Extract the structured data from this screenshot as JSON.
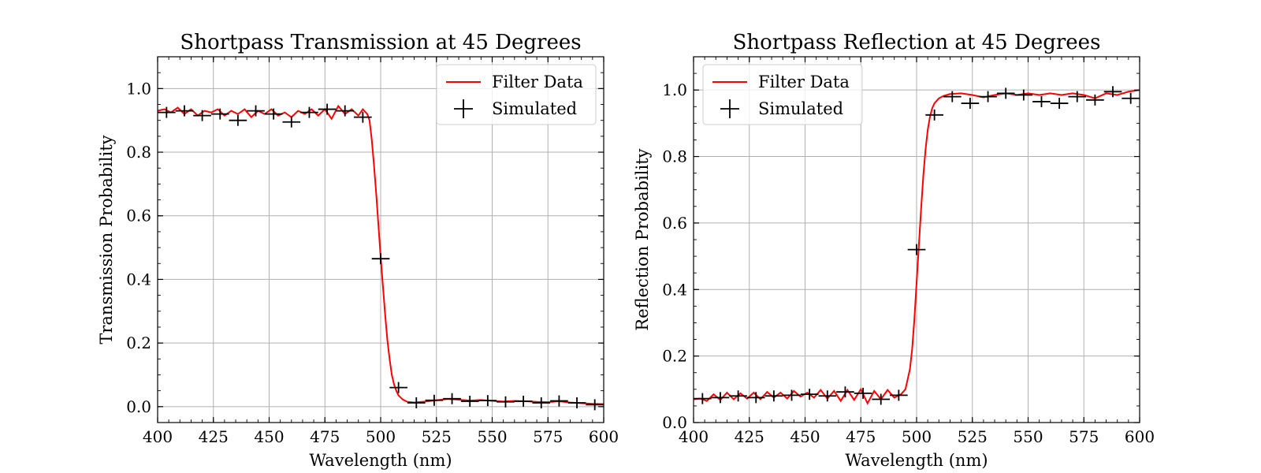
{
  "chart_data": [
    {
      "type": "line",
      "title": "Shortpass Transmission at 45 Degrees",
      "xlabel": "Wavelength (nm)",
      "ylabel": "Transmission Probability",
      "xlim": [
        400,
        600
      ],
      "ylim": [
        -0.05,
        1.1
      ],
      "xticks": [
        400,
        425,
        450,
        475,
        500,
        525,
        550,
        575,
        600
      ],
      "yticks": [
        0.0,
        0.2,
        0.4,
        0.6,
        0.8,
        1.0
      ],
      "ytick_labels": [
        "0.0",
        "0.2",
        "0.4",
        "0.6",
        "0.8",
        "1.0"
      ],
      "grid": true,
      "legend_position": "top-right",
      "series": [
        {
          "name": "Filter Data",
          "style": "line",
          "color": "#ff0000",
          "x": [
            400,
            403,
            406,
            409,
            412,
            415,
            418,
            421,
            424,
            427,
            430,
            433,
            436,
            439,
            442,
            445,
            448,
            451,
            454,
            457,
            460,
            463,
            466,
            469,
            472,
            475,
            478,
            481,
            484,
            487,
            490,
            492,
            494,
            495,
            496,
            497,
            498,
            499,
            500,
            501,
            502,
            503,
            504,
            505,
            506,
            507,
            508,
            510,
            512,
            515,
            520,
            525,
            530,
            535,
            540,
            545,
            550,
            555,
            560,
            565,
            570,
            575,
            580,
            585,
            590,
            595,
            600
          ],
          "y": [
            0.93,
            0.935,
            0.925,
            0.94,
            0.92,
            0.935,
            0.915,
            0.93,
            0.925,
            0.935,
            0.915,
            0.93,
            0.92,
            0.935,
            0.91,
            0.93,
            0.92,
            0.935,
            0.915,
            0.925,
            0.91,
            0.93,
            0.92,
            0.935,
            0.915,
            0.935,
            0.905,
            0.945,
            0.92,
            0.935,
            0.915,
            0.935,
            0.92,
            0.9,
            0.84,
            0.76,
            0.67,
            0.57,
            0.47,
            0.38,
            0.29,
            0.21,
            0.15,
            0.1,
            0.07,
            0.05,
            0.035,
            0.022,
            0.015,
            0.013,
            0.016,
            0.02,
            0.024,
            0.022,
            0.019,
            0.021,
            0.018,
            0.016,
            0.018,
            0.017,
            0.015,
            0.014,
            0.017,
            0.013,
            0.011,
            0.009,
            0.008
          ]
        },
        {
          "name": "Simulated",
          "style": "errorbar",
          "color": "#000000",
          "x": [
            404,
            412,
            420,
            428,
            436,
            444,
            452,
            460,
            468,
            476,
            484,
            492,
            500,
            508,
            516,
            524,
            532,
            540,
            548,
            556,
            564,
            572,
            580,
            588,
            596
          ],
          "y": [
            0.925,
            0.93,
            0.915,
            0.92,
            0.9,
            0.93,
            0.92,
            0.895,
            0.925,
            0.935,
            0.93,
            0.91,
            0.465,
            0.06,
            0.012,
            0.02,
            0.025,
            0.017,
            0.019,
            0.015,
            0.017,
            0.012,
            0.018,
            0.012,
            0.006
          ]
        }
      ]
    },
    {
      "type": "line",
      "title": "Shortpass Reflection at 45 Degrees",
      "xlabel": "Wavelength (nm)",
      "ylabel": "Reflection Probability",
      "xlim": [
        400,
        600
      ],
      "ylim": [
        0.0,
        1.1
      ],
      "xticks": [
        400,
        425,
        450,
        475,
        500,
        525,
        550,
        575,
        600
      ],
      "yticks": [
        0.0,
        0.2,
        0.4,
        0.6,
        0.8,
        1.0
      ],
      "ytick_labels": [
        "0.0",
        "0.2",
        "0.4",
        "0.6",
        "0.8",
        "1.0"
      ],
      "grid": true,
      "legend_position": "top-left",
      "series": [
        {
          "name": "Filter Data",
          "style": "line",
          "color": "#ff0000",
          "x": [
            400,
            403,
            406,
            409,
            412,
            415,
            418,
            421,
            424,
            427,
            430,
            433,
            436,
            439,
            442,
            445,
            448,
            451,
            454,
            457,
            460,
            463,
            466,
            469,
            472,
            475,
            478,
            481,
            484,
            487,
            490,
            493,
            495,
            497,
            498,
            499,
            500,
            501,
            502,
            503,
            504,
            505,
            506,
            507,
            508,
            510,
            512,
            515,
            520,
            525,
            530,
            535,
            540,
            545,
            550,
            555,
            560,
            565,
            570,
            575,
            580,
            585,
            590,
            595,
            600
          ],
          "y": [
            0.07,
            0.072,
            0.065,
            0.085,
            0.068,
            0.09,
            0.07,
            0.088,
            0.072,
            0.09,
            0.07,
            0.092,
            0.075,
            0.09,
            0.072,
            0.095,
            0.078,
            0.09,
            0.075,
            0.098,
            0.072,
            0.095,
            0.065,
            0.098,
            0.068,
            0.1,
            0.058,
            0.095,
            0.07,
            0.098,
            0.075,
            0.085,
            0.1,
            0.16,
            0.22,
            0.31,
            0.42,
            0.53,
            0.64,
            0.74,
            0.82,
            0.88,
            0.92,
            0.945,
            0.96,
            0.975,
            0.982,
            0.988,
            0.99,
            0.985,
            0.978,
            0.985,
            0.99,
            0.985,
            0.99,
            0.985,
            0.99,
            0.985,
            0.99,
            0.985,
            0.975,
            0.99,
            0.985,
            0.995,
            1.0
          ]
        },
        {
          "name": "Simulated",
          "style": "errorbar",
          "color": "#000000",
          "x": [
            404,
            412,
            420,
            428,
            436,
            444,
            452,
            460,
            468,
            476,
            484,
            492,
            500,
            508,
            516,
            524,
            532,
            540,
            548,
            556,
            564,
            572,
            580,
            588,
            596
          ],
          "y": [
            0.072,
            0.075,
            0.08,
            0.075,
            0.08,
            0.082,
            0.085,
            0.08,
            0.092,
            0.088,
            0.07,
            0.082,
            0.52,
            0.925,
            0.98,
            0.96,
            0.98,
            0.99,
            0.985,
            0.965,
            0.96,
            0.98,
            0.97,
            0.995,
            0.975
          ]
        }
      ]
    }
  ]
}
